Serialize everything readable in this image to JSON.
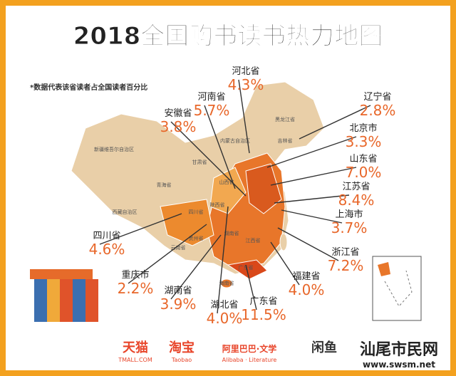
{
  "header": {
    "title": "2018全国购书读书热力地图",
    "note": "*数据代表该省读者占全国读者百分比"
  },
  "callouts": [
    {
      "name": "河北省",
      "value": "4.3%"
    },
    {
      "name": "河南省",
      "value": "5.7%"
    },
    {
      "name": "安徽省",
      "value": "3.8%"
    },
    {
      "name": "辽宁省",
      "value": "2.8%"
    },
    {
      "name": "北京市",
      "value": "3.3%"
    },
    {
      "name": "山东省",
      "value": "7.0%"
    },
    {
      "name": "江苏省",
      "value": "8.4%"
    },
    {
      "name": "上海市",
      "value": "3.7%"
    },
    {
      "name": "四川省",
      "value": "4.6%"
    },
    {
      "name": "浙江省",
      "value": "7.2%"
    },
    {
      "name": "重庆市",
      "value": "2.2%"
    },
    {
      "name": "福建省",
      "value": "4.0%"
    },
    {
      "name": "湖南省",
      "value": "3.9%"
    },
    {
      "name": "湖北省",
      "value": "4.0%"
    },
    {
      "name": "广东省",
      "value": "11.5%"
    }
  ],
  "map_labels": [
    "黑龙江省",
    "吉林省",
    "内蒙古自治区",
    "新疆维吾尔自治区",
    "青海省",
    "西藏自治区",
    "甘肃省",
    "四川省",
    "云南省",
    "贵州省",
    "山西省",
    "陕西省",
    "湖南省",
    "江西省",
    "广东省",
    "海南省"
  ],
  "logos": [
    {
      "name": "天猫",
      "sub": "TMALL.COM"
    },
    {
      "name": "淘宝",
      "sub": "Taobao"
    },
    {
      "name": "阿里巴巴·文学",
      "sub": "Alibaba · Literature"
    },
    {
      "name": "闲鱼",
      "sub": ""
    }
  ],
  "watermark": {
    "name": "汕尾市民网",
    "url": "www.swsm.net"
  }
}
